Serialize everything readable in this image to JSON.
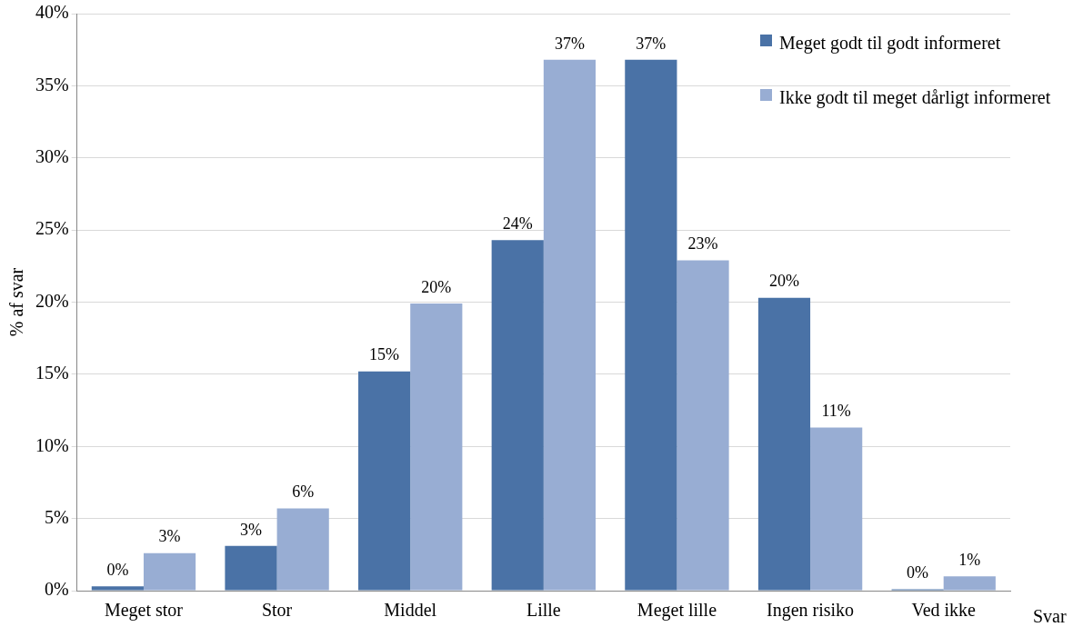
{
  "chart_data": {
    "type": "bar",
    "xlabel": "Svar",
    "ylabel": "% af svar",
    "categories": [
      "Meget stor",
      "Stor",
      "Middel",
      "Lille",
      "Meget lille",
      "Ingen risiko",
      "Ved ikke"
    ],
    "series": [
      {
        "name": "Meget godt til godt informeret",
        "color": "#4a72a6",
        "values": [
          0.3,
          3.1,
          15.2,
          24.3,
          36.8,
          20.3,
          0.1
        ],
        "value_labels": [
          "0%",
          "3%",
          "15%",
          "24%",
          "37%",
          "20%",
          "0%"
        ]
      },
      {
        "name": "Ikke godt til meget dårligt informeret",
        "color": "#98add3",
        "values": [
          2.6,
          5.7,
          19.9,
          36.8,
          22.9,
          11.3,
          1.0
        ],
        "value_labels": [
          "3%",
          "6%",
          "20%",
          "37%",
          "23%",
          "11%",
          "1%"
        ]
      }
    ],
    "ylim": [
      0,
      40
    ],
    "yticks": [
      {
        "value": 0,
        "label": "0%"
      },
      {
        "value": 5,
        "label": "5%"
      },
      {
        "value": 10,
        "label": "10%"
      },
      {
        "value": 15,
        "label": "15%"
      },
      {
        "value": 20,
        "label": "20%"
      },
      {
        "value": 25,
        "label": "25%"
      },
      {
        "value": 30,
        "label": "30%"
      },
      {
        "value": 35,
        "label": "35%"
      },
      {
        "value": 40,
        "label": "40%"
      }
    ],
    "grid": "y",
    "legend": "top right"
  }
}
